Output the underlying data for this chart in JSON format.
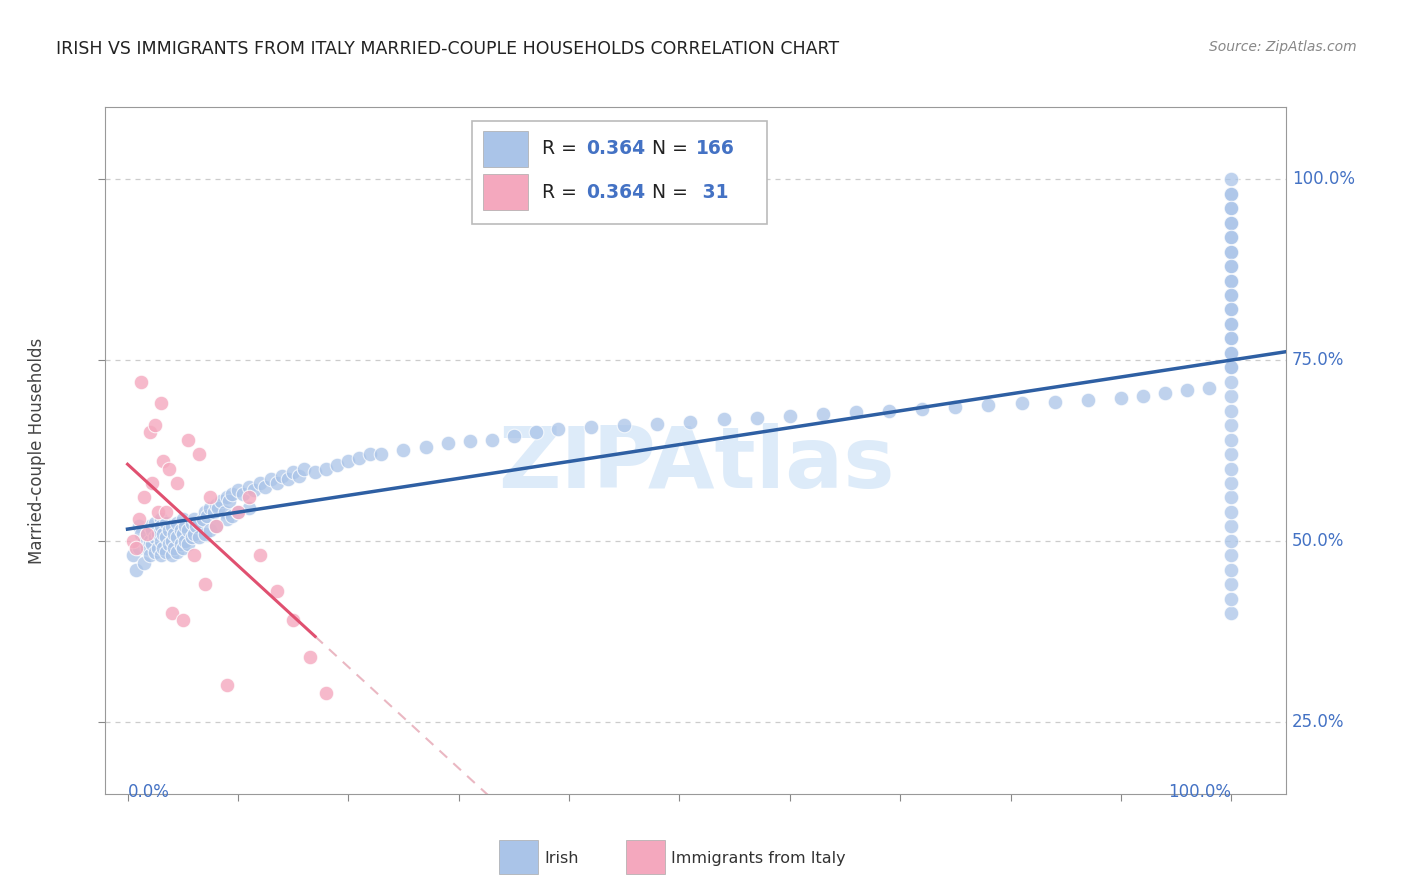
{
  "title": "IRISH VS IMMIGRANTS FROM ITALY MARRIED-COUPLE HOUSEHOLDS CORRELATION CHART",
  "source": "Source: ZipAtlas.com",
  "ylabel": "Married-couple Households",
  "y_tick_labels": [
    "25.0%",
    "50.0%",
    "75.0%",
    "100.0%"
  ],
  "y_tick_positions": [
    0.25,
    0.5,
    0.75,
    1.0
  ],
  "background_color": "#ffffff",
  "plot_bg_color": "#ffffff",
  "grid_color": "#cccccc",
  "title_color": "#222222",
  "axis_label_color": "#4472c4",
  "irish_dot_color": "#aac4e8",
  "italy_dot_color": "#f4a8be",
  "irish_line_color": "#2e5fa3",
  "italy_line_color": "#e05070",
  "italy_dash_color": "#e8b0bc",
  "watermark_color": "#d8e8f8",
  "legend_irish_color": "#aac4e8",
  "legend_italy_color": "#f4a8be",
  "irish_scatter_x": [
    0.005,
    0.008,
    0.01,
    0.01,
    0.012,
    0.015,
    0.015,
    0.018,
    0.018,
    0.02,
    0.02,
    0.02,
    0.022,
    0.022,
    0.025,
    0.025,
    0.025,
    0.028,
    0.028,
    0.03,
    0.03,
    0.03,
    0.03,
    0.032,
    0.032,
    0.035,
    0.035,
    0.035,
    0.038,
    0.038,
    0.04,
    0.04,
    0.04,
    0.042,
    0.042,
    0.045,
    0.045,
    0.045,
    0.048,
    0.048,
    0.05,
    0.05,
    0.05,
    0.052,
    0.052,
    0.055,
    0.055,
    0.058,
    0.058,
    0.06,
    0.06,
    0.062,
    0.065,
    0.065,
    0.068,
    0.07,
    0.07,
    0.072,
    0.075,
    0.075,
    0.078,
    0.08,
    0.08,
    0.082,
    0.085,
    0.088,
    0.09,
    0.09,
    0.092,
    0.095,
    0.095,
    0.1,
    0.1,
    0.105,
    0.11,
    0.11,
    0.115,
    0.12,
    0.125,
    0.13,
    0.135,
    0.14,
    0.145,
    0.15,
    0.155,
    0.16,
    0.17,
    0.18,
    0.19,
    0.2,
    0.21,
    0.22,
    0.23,
    0.25,
    0.27,
    0.29,
    0.31,
    0.33,
    0.35,
    0.37,
    0.39,
    0.42,
    0.45,
    0.48,
    0.51,
    0.54,
    0.57,
    0.6,
    0.63,
    0.66,
    0.69,
    0.72,
    0.75,
    0.78,
    0.81,
    0.84,
    0.87,
    0.9,
    0.92,
    0.94,
    0.96,
    0.98,
    1.0,
    1.0,
    1.0,
    1.0,
    1.0,
    1.0,
    1.0,
    1.0,
    1.0,
    1.0,
    1.0,
    1.0,
    1.0,
    1.0,
    1.0,
    1.0,
    1.0,
    1.0,
    1.0,
    1.0,
    1.0,
    1.0,
    1.0,
    1.0,
    1.0,
    1.0,
    1.0,
    1.0,
    1.0,
    1.0,
    1.0,
    1.0,
    1.0,
    1.0,
    1.0,
    1.0,
    1.0,
    1.0,
    1.0,
    1.0,
    1.0,
    1.0,
    1.0,
    1.0
  ],
  "irish_scatter_y": [
    0.48,
    0.46,
    0.52,
    0.49,
    0.51,
    0.5,
    0.47,
    0.51,
    0.49,
    0.52,
    0.5,
    0.48,
    0.515,
    0.495,
    0.505,
    0.525,
    0.485,
    0.51,
    0.49,
    0.53,
    0.5,
    0.48,
    0.52,
    0.51,
    0.49,
    0.505,
    0.525,
    0.485,
    0.515,
    0.495,
    0.52,
    0.5,
    0.48,
    0.51,
    0.49,
    0.525,
    0.505,
    0.485,
    0.515,
    0.495,
    0.53,
    0.51,
    0.49,
    0.52,
    0.5,
    0.515,
    0.495,
    0.525,
    0.505,
    0.53,
    0.51,
    0.52,
    0.525,
    0.505,
    0.53,
    0.54,
    0.51,
    0.535,
    0.545,
    0.515,
    0.54,
    0.55,
    0.52,
    0.545,
    0.555,
    0.54,
    0.56,
    0.53,
    0.555,
    0.565,
    0.535,
    0.57,
    0.54,
    0.565,
    0.575,
    0.545,
    0.57,
    0.58,
    0.575,
    0.585,
    0.58,
    0.59,
    0.585,
    0.595,
    0.59,
    0.6,
    0.595,
    0.6,
    0.605,
    0.61,
    0.615,
    0.62,
    0.62,
    0.625,
    0.63,
    0.635,
    0.638,
    0.64,
    0.645,
    0.65,
    0.655,
    0.658,
    0.66,
    0.662,
    0.665,
    0.668,
    0.67,
    0.672,
    0.675,
    0.678,
    0.68,
    0.682,
    0.685,
    0.688,
    0.69,
    0.692,
    0.695,
    0.698,
    0.7,
    0.705,
    0.708,
    0.712,
    0.4,
    0.42,
    0.44,
    0.46,
    0.48,
    0.5,
    0.52,
    0.54,
    0.56,
    0.58,
    0.6,
    0.62,
    0.64,
    0.66,
    0.68,
    0.7,
    0.72,
    0.74,
    0.76,
    0.78,
    0.8,
    0.82,
    0.84,
    0.86,
    0.88,
    0.9,
    0.92,
    0.94,
    0.96,
    0.98,
    1.0,
    0.98,
    0.96,
    0.94,
    0.92,
    0.9,
    0.88,
    0.86,
    0.84,
    0.82,
    0.8,
    0.78,
    0.76,
    0.74
  ],
  "italy_scatter_x": [
    0.005,
    0.008,
    0.01,
    0.012,
    0.015,
    0.018,
    0.02,
    0.022,
    0.025,
    0.028,
    0.03,
    0.032,
    0.035,
    0.038,
    0.04,
    0.045,
    0.05,
    0.055,
    0.06,
    0.065,
    0.07,
    0.075,
    0.08,
    0.09,
    0.1,
    0.11,
    0.12,
    0.135,
    0.15,
    0.165,
    0.18
  ],
  "italy_scatter_y": [
    0.5,
    0.49,
    0.53,
    0.72,
    0.56,
    0.51,
    0.65,
    0.58,
    0.66,
    0.54,
    0.69,
    0.61,
    0.54,
    0.6,
    0.4,
    0.58,
    0.39,
    0.64,
    0.48,
    0.62,
    0.44,
    0.56,
    0.52,
    0.3,
    0.54,
    0.56,
    0.48,
    0.43,
    0.39,
    0.34,
    0.29
  ]
}
